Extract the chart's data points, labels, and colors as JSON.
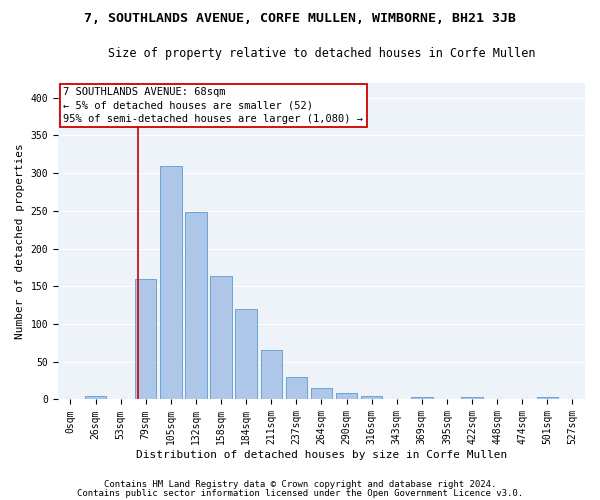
{
  "title": "7, SOUTHLANDS AVENUE, CORFE MULLEN, WIMBORNE, BH21 3JB",
  "subtitle": "Size of property relative to detached houses in Corfe Mullen",
  "xlabel": "Distribution of detached houses by size in Corfe Mullen",
  "ylabel": "Number of detached properties",
  "footnote1": "Contains HM Land Registry data © Crown copyright and database right 2024.",
  "footnote2": "Contains public sector information licensed under the Open Government Licence v3.0.",
  "categories": [
    "0sqm",
    "26sqm",
    "53sqm",
    "79sqm",
    "105sqm",
    "132sqm",
    "158sqm",
    "184sqm",
    "211sqm",
    "237sqm",
    "264sqm",
    "290sqm",
    "316sqm",
    "343sqm",
    "369sqm",
    "395sqm",
    "422sqm",
    "448sqm",
    "474sqm",
    "501sqm",
    "527sqm"
  ],
  "values": [
    0,
    5,
    0,
    160,
    310,
    248,
    163,
    120,
    65,
    30,
    15,
    8,
    4,
    0,
    3,
    0,
    3,
    0,
    0,
    3,
    0
  ],
  "bar_color": "#aec6e8",
  "bar_edge_color": "#5b9bd5",
  "vline_color": "#cc0000",
  "vline_pos": 2.68,
  "annotation_line1": "7 SOUTHLANDS AVENUE: 68sqm",
  "annotation_line2": "← 5% of detached houses are smaller (52)",
  "annotation_line3": "95% of semi-detached houses are larger (1,080) →",
  "box_color": "#cc0000",
  "ylim": [
    0,
    420
  ],
  "yticks": [
    0,
    50,
    100,
    150,
    200,
    250,
    300,
    350,
    400
  ],
  "bg_color": "#eef2f9",
  "grid_color": "#ffffff",
  "title_fontsize": 9.5,
  "subtitle_fontsize": 8.5,
  "label_fontsize": 8,
  "tick_fontsize": 7,
  "annot_fontsize": 7.5,
  "footnote_fontsize": 6.5
}
